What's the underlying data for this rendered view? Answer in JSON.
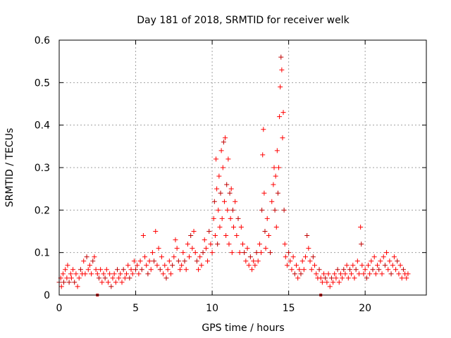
{
  "chart_data": {
    "type": "scatter",
    "title": "Day 181 of 2018, SRMTID for receiver welk",
    "xlabel": "GPS time / hours",
    "ylabel": "SRMTID / TECUs",
    "xlim": [
      0,
      24
    ],
    "ylim": [
      0,
      0.6
    ],
    "xticks": [
      0,
      5,
      10,
      15,
      20
    ],
    "xtick_labels": [
      "0",
      "5",
      "10",
      "15",
      "20"
    ],
    "yticks": [
      0,
      0.1,
      0.2,
      0.3,
      0.4,
      0.5,
      0.6
    ],
    "ytick_labels": [
      "0",
      "0.1",
      "0.2",
      "0.3",
      "0.4",
      "0.5",
      "0.6"
    ],
    "grid": true,
    "marker": "plus",
    "series_color": "#ff0000",
    "marker_dark_color": "#c00000",
    "x_axis_markers": [
      2.5,
      17.1
    ],
    "points": [
      [
        0.0,
        0.03
      ],
      [
        0.1,
        0.04
      ],
      [
        0.15,
        0.02
      ],
      [
        0.25,
        0.05
      ],
      [
        0.3,
        0.03
      ],
      [
        0.4,
        0.06
      ],
      [
        0.5,
        0.04
      ],
      [
        0.55,
        0.07
      ],
      [
        0.65,
        0.03
      ],
      [
        0.75,
        0.05
      ],
      [
        0.8,
        0.04
      ],
      [
        0.9,
        0.06
      ],
      [
        1.0,
        0.03
      ],
      [
        1.1,
        0.05
      ],
      [
        1.2,
        0.02
      ],
      [
        1.3,
        0.04
      ],
      [
        1.4,
        0.06
      ],
      [
        1.5,
        0.05
      ],
      [
        1.6,
        0.08
      ],
      [
        1.7,
        0.05
      ],
      [
        1.8,
        0.09
      ],
      [
        1.9,
        0.06
      ],
      [
        2.0,
        0.07
      ],
      [
        2.1,
        0.05
      ],
      [
        2.2,
        0.08
      ],
      [
        2.3,
        0.09
      ],
      [
        2.4,
        0.06
      ],
      [
        2.5,
        0.05
      ],
      [
        2.6,
        0.04
      ],
      [
        2.7,
        0.06
      ],
      [
        2.8,
        0.03
      ],
      [
        2.9,
        0.05
      ],
      [
        3.0,
        0.04
      ],
      [
        3.1,
        0.06
      ],
      [
        3.2,
        0.03
      ],
      [
        3.3,
        0.05
      ],
      [
        3.4,
        0.02
      ],
      [
        3.5,
        0.04
      ],
      [
        3.6,
        0.05
      ],
      [
        3.7,
        0.03
      ],
      [
        3.8,
        0.06
      ],
      [
        3.9,
        0.04
      ],
      [
        4.0,
        0.05
      ],
      [
        4.1,
        0.03
      ],
      [
        4.2,
        0.06
      ],
      [
        4.3,
        0.04
      ],
      [
        4.4,
        0.05
      ],
      [
        4.5,
        0.07
      ],
      [
        4.6,
        0.04
      ],
      [
        4.7,
        0.06
      ],
      [
        4.8,
        0.05
      ],
      [
        4.9,
        0.08
      ],
      [
        5.0,
        0.06
      ],
      [
        5.1,
        0.07
      ],
      [
        5.2,
        0.05
      ],
      [
        5.3,
        0.08
      ],
      [
        5.4,
        0.06
      ],
      [
        5.5,
        0.14
      ],
      [
        5.6,
        0.09
      ],
      [
        5.7,
        0.07
      ],
      [
        5.8,
        0.05
      ],
      [
        5.9,
        0.08
      ],
      [
        6.0,
        0.06
      ],
      [
        6.1,
        0.1
      ],
      [
        6.2,
        0.08
      ],
      [
        6.3,
        0.15
      ],
      [
        6.4,
        0.07
      ],
      [
        6.5,
        0.11
      ],
      [
        6.6,
        0.06
      ],
      [
        6.7,
        0.09
      ],
      [
        6.8,
        0.05
      ],
      [
        6.9,
        0.07
      ],
      [
        7.0,
        0.04
      ],
      [
        7.1,
        0.06
      ],
      [
        7.2,
        0.08
      ],
      [
        7.3,
        0.05
      ],
      [
        7.4,
        0.07
      ],
      [
        7.5,
        0.09
      ],
      [
        7.6,
        0.13
      ],
      [
        7.7,
        0.11
      ],
      [
        7.8,
        0.08
      ],
      [
        7.9,
        0.06
      ],
      [
        8.0,
        0.07
      ],
      [
        8.1,
        0.1
      ],
      [
        8.2,
        0.08
      ],
      [
        8.3,
        0.06
      ],
      [
        8.4,
        0.12
      ],
      [
        8.5,
        0.09
      ],
      [
        8.6,
        0.14
      ],
      [
        8.7,
        0.11
      ],
      [
        8.8,
        0.15
      ],
      [
        8.9,
        0.1
      ],
      [
        9.0,
        0.08
      ],
      [
        9.1,
        0.06
      ],
      [
        9.2,
        0.09
      ],
      [
        9.3,
        0.07
      ],
      [
        9.4,
        0.1
      ],
      [
        9.5,
        0.13
      ],
      [
        9.6,
        0.11
      ],
      [
        9.7,
        0.08
      ],
      [
        9.8,
        0.15
      ],
      [
        9.9,
        0.12
      ],
      [
        10.0,
        0.1
      ],
      [
        10.1,
        0.18
      ],
      [
        10.15,
        0.22
      ],
      [
        10.2,
        0.14
      ],
      [
        10.25,
        0.32
      ],
      [
        10.3,
        0.25
      ],
      [
        10.35,
        0.12
      ],
      [
        10.4,
        0.2
      ],
      [
        10.45,
        0.28
      ],
      [
        10.5,
        0.16
      ],
      [
        10.55,
        0.24
      ],
      [
        10.6,
        0.34
      ],
      [
        10.65,
        0.18
      ],
      [
        10.7,
        0.3
      ],
      [
        10.75,
        0.36
      ],
      [
        10.8,
        0.22
      ],
      [
        10.85,
        0.37
      ],
      [
        10.9,
        0.14
      ],
      [
        10.95,
        0.26
      ],
      [
        11.0,
        0.2
      ],
      [
        11.05,
        0.32
      ],
      [
        11.1,
        0.12
      ],
      [
        11.15,
        0.24
      ],
      [
        11.2,
        0.18
      ],
      [
        11.25,
        0.25
      ],
      [
        11.3,
        0.1
      ],
      [
        11.35,
        0.2
      ],
      [
        11.4,
        0.16
      ],
      [
        11.5,
        0.22
      ],
      [
        11.6,
        0.14
      ],
      [
        11.7,
        0.18
      ],
      [
        11.8,
        0.1
      ],
      [
        11.9,
        0.16
      ],
      [
        12.0,
        0.12
      ],
      [
        12.1,
        0.1
      ],
      [
        12.2,
        0.08
      ],
      [
        12.3,
        0.11
      ],
      [
        12.4,
        0.07
      ],
      [
        12.5,
        0.09
      ],
      [
        12.6,
        0.06
      ],
      [
        12.7,
        0.08
      ],
      [
        12.8,
        0.07
      ],
      [
        12.9,
        0.1
      ],
      [
        13.0,
        0.08
      ],
      [
        13.1,
        0.12
      ],
      [
        13.2,
        0.1
      ],
      [
        13.25,
        0.2
      ],
      [
        13.3,
        0.33
      ],
      [
        13.35,
        0.39
      ],
      [
        13.4,
        0.24
      ],
      [
        13.45,
        0.15
      ],
      [
        13.5,
        0.11
      ],
      [
        13.6,
        0.18
      ],
      [
        13.7,
        0.14
      ],
      [
        13.8,
        0.1
      ],
      [
        13.9,
        0.22
      ],
      [
        14.0,
        0.26
      ],
      [
        14.05,
        0.3
      ],
      [
        14.1,
        0.2
      ],
      [
        14.15,
        0.28
      ],
      [
        14.2,
        0.16
      ],
      [
        14.25,
        0.34
      ],
      [
        14.3,
        0.24
      ],
      [
        14.35,
        0.3
      ],
      [
        14.4,
        0.42
      ],
      [
        14.45,
        0.49
      ],
      [
        14.5,
        0.56
      ],
      [
        14.55,
        0.53
      ],
      [
        14.6,
        0.37
      ],
      [
        14.65,
        0.43
      ],
      [
        14.7,
        0.2
      ],
      [
        14.75,
        0.12
      ],
      [
        14.8,
        0.09
      ],
      [
        14.9,
        0.07
      ],
      [
        15.0,
        0.1
      ],
      [
        15.1,
        0.08
      ],
      [
        15.2,
        0.06
      ],
      [
        15.3,
        0.09
      ],
      [
        15.4,
        0.05
      ],
      [
        15.5,
        0.07
      ],
      [
        15.6,
        0.04
      ],
      [
        15.7,
        0.06
      ],
      [
        15.8,
        0.05
      ],
      [
        15.9,
        0.08
      ],
      [
        16.0,
        0.06
      ],
      [
        16.1,
        0.09
      ],
      [
        16.2,
        0.14
      ],
      [
        16.3,
        0.11
      ],
      [
        16.4,
        0.08
      ],
      [
        16.5,
        0.06
      ],
      [
        16.6,
        0.09
      ],
      [
        16.7,
        0.07
      ],
      [
        16.8,
        0.05
      ],
      [
        16.9,
        0.04
      ],
      [
        17.0,
        0.06
      ],
      [
        17.1,
        0.04
      ],
      [
        17.2,
        0.03
      ],
      [
        17.3,
        0.05
      ],
      [
        17.4,
        0.04
      ],
      [
        17.5,
        0.03
      ],
      [
        17.6,
        0.05
      ],
      [
        17.7,
        0.02
      ],
      [
        17.8,
        0.04
      ],
      [
        17.9,
        0.03
      ],
      [
        18.0,
        0.05
      ],
      [
        18.1,
        0.04
      ],
      [
        18.2,
        0.06
      ],
      [
        18.3,
        0.03
      ],
      [
        18.4,
        0.05
      ],
      [
        18.5,
        0.04
      ],
      [
        18.6,
        0.06
      ],
      [
        18.7,
        0.05
      ],
      [
        18.8,
        0.07
      ],
      [
        18.9,
        0.04
      ],
      [
        19.0,
        0.06
      ],
      [
        19.1,
        0.05
      ],
      [
        19.2,
        0.07
      ],
      [
        19.3,
        0.04
      ],
      [
        19.4,
        0.06
      ],
      [
        19.5,
        0.08
      ],
      [
        19.6,
        0.05
      ],
      [
        19.7,
        0.16
      ],
      [
        19.75,
        0.12
      ],
      [
        19.8,
        0.07
      ],
      [
        19.9,
        0.05
      ],
      [
        20.0,
        0.06
      ],
      [
        20.1,
        0.04
      ],
      [
        20.2,
        0.07
      ],
      [
        20.3,
        0.05
      ],
      [
        20.4,
        0.08
      ],
      [
        20.5,
        0.06
      ],
      [
        20.6,
        0.09
      ],
      [
        20.7,
        0.05
      ],
      [
        20.8,
        0.07
      ],
      [
        20.9,
        0.06
      ],
      [
        21.0,
        0.08
      ],
      [
        21.1,
        0.05
      ],
      [
        21.2,
        0.09
      ],
      [
        21.3,
        0.07
      ],
      [
        21.4,
        0.1
      ],
      [
        21.5,
        0.06
      ],
      [
        21.6,
        0.08
      ],
      [
        21.7,
        0.05
      ],
      [
        21.8,
        0.07
      ],
      [
        21.9,
        0.09
      ],
      [
        22.0,
        0.06
      ],
      [
        22.1,
        0.08
      ],
      [
        22.2,
        0.05
      ],
      [
        22.3,
        0.07
      ],
      [
        22.4,
        0.04
      ],
      [
        22.5,
        0.06
      ],
      [
        22.6,
        0.05
      ],
      [
        22.7,
        0.04
      ],
      [
        22.8,
        0.05
      ]
    ]
  }
}
